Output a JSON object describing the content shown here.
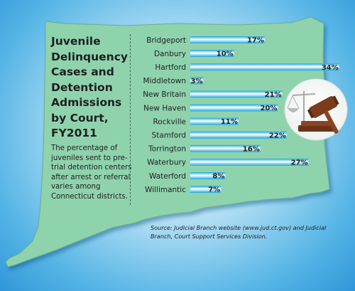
{
  "title": "Juvenile Delinquency Cases and Detention Admissions by Court, FY2011",
  "description": "The percentage of juveniles sent to pre-trial detention centers after arrest or referral varies among Connecticut districts.",
  "source": "Source: Judicial Branch website (www.jud.ct.gov) and Judicial Branch, Court Support Services Division.",
  "icon": "gavel-and-scales-icon",
  "colors": {
    "map_fill": "#8fd3ad",
    "background": "#58b6e6",
    "bar_light": "#ffffff",
    "bar_dark": "#18a7dc"
  },
  "chart_data": {
    "type": "bar",
    "orientation": "horizontal",
    "title": "Juvenile Delinquency Cases and Detention Admissions by Court, FY2011",
    "categories": [
      "Bridgeport",
      "Danbury",
      "Hartford",
      "Middletown",
      "New Britain",
      "New Haven",
      "Rockville",
      "Stamford",
      "Torrington",
      "Waterbury",
      "Waterford",
      "Willimantic"
    ],
    "values": [
      17,
      10,
      34,
      3,
      21,
      20,
      11,
      22,
      16,
      27,
      8,
      7
    ],
    "value_labels": [
      "17%",
      "10%",
      "34%",
      "3%",
      "21%",
      "20%",
      "11%",
      "22%",
      "16%",
      "27%",
      "8%",
      "7%"
    ],
    "unit": "%",
    "xlim": [
      0,
      34
    ],
    "grid": false,
    "legend": "none"
  }
}
